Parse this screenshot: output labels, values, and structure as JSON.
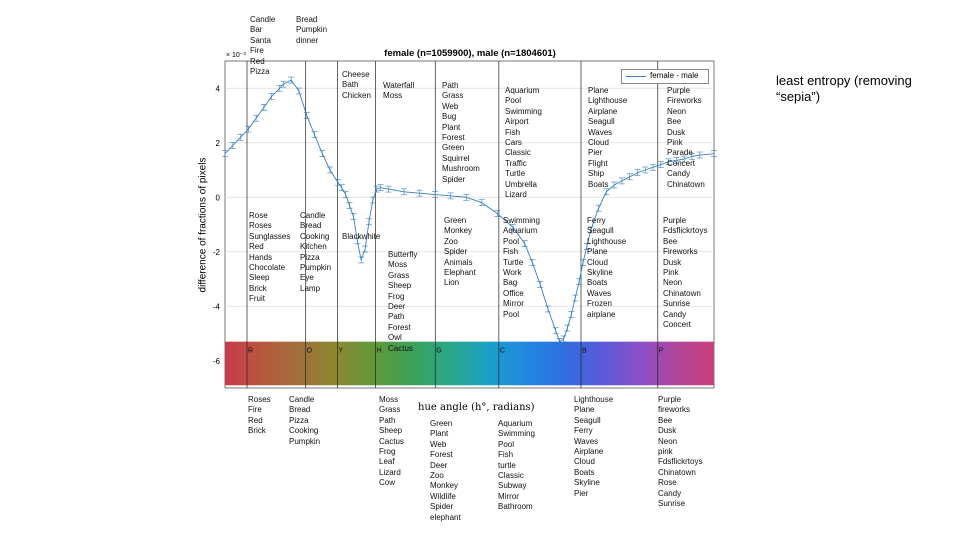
{
  "chart_data": {
    "type": "line",
    "title": "female (n=1059900), male (n=1804601)",
    "xlabel": "hue angle (h°, radians)",
    "ylabel": "difference of fractions of pixels",
    "y_exponent_label": "× 10⁻³",
    "ylim": [
      -7,
      5
    ],
    "yticks": [
      -6,
      -4,
      -2,
      0,
      2,
      4
    ],
    "xlim": [
      0,
      6.2832
    ],
    "grid": true,
    "legend_position": "top-right",
    "series": [
      {
        "name": "female - male",
        "color": "#3a7fc0",
        "x": [
          0,
          0.1,
          0.2,
          0.3,
          0.4,
          0.5,
          0.6,
          0.7,
          0.75,
          0.85,
          0.95,
          1.05,
          1.15,
          1.25,
          1.35,
          1.45,
          1.5,
          1.55,
          1.6,
          1.65,
          1.7,
          1.75,
          1.8,
          1.85,
          1.9,
          1.95,
          2.0,
          2.1,
          2.3,
          2.5,
          2.7,
          2.9,
          3.1,
          3.3,
          3.5,
          3.7,
          3.85,
          3.95,
          4.05,
          4.15,
          4.25,
          4.3,
          4.35,
          4.4,
          4.45,
          4.5,
          4.55,
          4.6,
          4.65,
          4.7,
          4.8,
          4.9,
          5.0,
          5.1,
          5.2,
          5.3,
          5.4,
          5.5,
          5.6,
          5.7,
          5.8,
          5.9,
          6.0,
          6.1,
          6.2832
        ],
        "y": [
          1.6,
          1.9,
          2.2,
          2.5,
          2.9,
          3.3,
          3.7,
          4.0,
          4.15,
          4.3,
          3.9,
          3.0,
          2.3,
          1.6,
          1.0,
          0.55,
          0.35,
          0.1,
          -0.3,
          -0.7,
          -1.6,
          -2.3,
          -1.9,
          -0.9,
          -0.1,
          0.3,
          0.35,
          0.3,
          0.2,
          0.15,
          0.1,
          0.05,
          0.0,
          -0.2,
          -0.6,
          -1.1,
          -1.7,
          -2.4,
          -3.2,
          -4.1,
          -4.9,
          -5.3,
          -5.2,
          -4.8,
          -4.3,
          -3.7,
          -3.1,
          -2.4,
          -1.8,
          -1.2,
          -0.4,
          0.2,
          0.45,
          0.6,
          0.75,
          0.9,
          1.0,
          1.1,
          1.2,
          1.3,
          1.35,
          1.4,
          1.5,
          1.55,
          1.6
        ]
      }
    ],
    "hue_segments": [
      {
        "label": "R",
        "x": 0.45
      },
      {
        "label": "O",
        "x": 1.6
      },
      {
        "label": "Y",
        "x": 2.55
      },
      {
        "label": "H",
        "x": 3.08
      },
      {
        "label": "G",
        "x": 4.7
      },
      {
        "label": "C",
        "x": 5.9
      },
      {
        "label": "B",
        "x": 8.0
      },
      {
        "label": "P",
        "x": 10.02
      }
    ],
    "hue_bar_colors": [
      "#c93a4a",
      "#b8583e",
      "#a0703a",
      "#8a8a30",
      "#5f9a3a",
      "#3aa05a",
      "#2aa88a",
      "#1aa0c8",
      "#2088e0",
      "#2e6fe0",
      "#5a5ad8",
      "#8850c8",
      "#b0459a",
      "#c8407a"
    ],
    "vlines_x_fraction": [
      0.045,
      0.165,
      0.23,
      0.308,
      0.43,
      0.56,
      0.728,
      0.885
    ]
  },
  "word_lists": {
    "top": [
      {
        "id": "top-r1",
        "words": [
          "Candle",
          "Bar",
          "Santa",
          "Fire",
          "Red",
          "Pizza"
        ]
      },
      {
        "id": "top-o1",
        "words": [
          "Bread",
          "Pumpkin",
          "dinner"
        ]
      },
      {
        "id": "top-y",
        "words": [
          "Cheese",
          "Bath",
          "Chicken"
        ]
      },
      {
        "id": "top-h",
        "words": [
          "Waterfall",
          "Moss"
        ]
      },
      {
        "id": "top-g",
        "words": [
          "Path",
          "Grass",
          "Web",
          "Bug",
          "Plant",
          "Forest",
          "Green",
          "Squirrel",
          "Mushroom",
          "Spider"
        ]
      },
      {
        "id": "top-c",
        "words": [
          "Aquarium",
          "Pool",
          "Swimming",
          "Airport",
          "Fish",
          "Cars",
          "Classic",
          "Traffic",
          "Turtle",
          "Umbrella",
          "Lizard"
        ]
      },
      {
        "id": "top-b",
        "words": [
          "Plane",
          "Lighthouse",
          "Airplane",
          "Seagull",
          "Waves",
          "Cloud",
          "Pier",
          "Flight",
          "Ship",
          "Boats"
        ]
      },
      {
        "id": "top-p",
        "words": [
          "Purple",
          "Fireworks",
          "Neon",
          "Bee",
          "Dusk",
          "Pink",
          "Parade",
          "Concert",
          "Candy",
          "Chinatown"
        ]
      }
    ],
    "mid": [
      {
        "id": "mid-r",
        "words": [
          "Rose",
          "Roses",
          "Sunglasses",
          "Red",
          "Hands",
          "Chocolate",
          "Sleep",
          "Brick",
          "Fruit"
        ]
      },
      {
        "id": "mid-o",
        "words": [
          "Candle",
          "Bread",
          "Cooking",
          "Kitchen",
          "Pizza",
          "Pumpkin",
          "Eye",
          "Lamp"
        ]
      },
      {
        "id": "mid-y",
        "words": [
          "Blackwhite"
        ]
      },
      {
        "id": "mid-h",
        "words": [
          "Butterfly",
          "Moss",
          "Grass",
          "Sheep",
          "Frog",
          "Deer",
          "Path",
          "Forest",
          "Owl",
          "Cactus"
        ]
      },
      {
        "id": "mid-g",
        "words": [
          "Green",
          "Monkey",
          "Zoo",
          "Spider",
          "Animals",
          "Elephant",
          "Lion"
        ]
      },
      {
        "id": "mid-c",
        "words": [
          "Swimming",
          "Aquarium",
          "Pool",
          "Fish",
          "Turtle",
          "Work",
          "Bag",
          "Office",
          "Mirror",
          "Pool"
        ]
      },
      {
        "id": "mid-b",
        "words": [
          "Ferry",
          "Seagull",
          "Lighthouse",
          "Plane",
          "Cloud",
          "Skyline",
          "Boats",
          "Waves",
          "Frozen",
          "airplane"
        ]
      },
      {
        "id": "mid-p",
        "words": [
          "Purple",
          "Fdsflickrtoys",
          "Bee",
          "Fireworks",
          "Dusk",
          "Pink",
          "Neon",
          "Chinatown",
          "Sunrise",
          "Candy",
          "Concert"
        ]
      }
    ],
    "bottom": [
      {
        "id": "bot-r",
        "words": [
          "Roses",
          "Fire",
          "Red",
          "Brick"
        ]
      },
      {
        "id": "bot-o",
        "words": [
          "Candle",
          "Bread",
          "Pizza",
          "Cooking",
          "Pumpkin"
        ]
      },
      {
        "id": "bot-h",
        "words": [
          "Moss",
          "Grass",
          "Path",
          "Sheep",
          "Cactus",
          "Frog",
          "Leaf",
          "Lizard",
          "Cow"
        ]
      },
      {
        "id": "bot-g",
        "words": [
          "Green",
          "Plant",
          "Web",
          "Forest",
          "Deer",
          "Zoo",
          "Monkey",
          "Wildlife",
          "Spider",
          "elephant"
        ]
      },
      {
        "id": "bot-c",
        "words": [
          "Aquarium",
          "Swimming",
          "Pool",
          "Fish",
          "turtle",
          "Classic",
          "Subway",
          "Mirror",
          "Bathroom"
        ]
      },
      {
        "id": "bot-b",
        "words": [
          "Lighthouse",
          "Plane",
          "Seagull",
          "Ferry",
          "Waves",
          "Airplane",
          "Cloud",
          "Boats",
          "Skyline",
          "Pier"
        ]
      },
      {
        "id": "bot-p",
        "words": [
          "Purple",
          "fireworks",
          "Bee",
          "Dusk",
          "Neon",
          "pink",
          "Fdsflickrtoys",
          "Chinatown",
          "Rose",
          "Candy",
          "Sunrise"
        ]
      }
    ]
  },
  "note": "least entropy (removing “sepia”)"
}
